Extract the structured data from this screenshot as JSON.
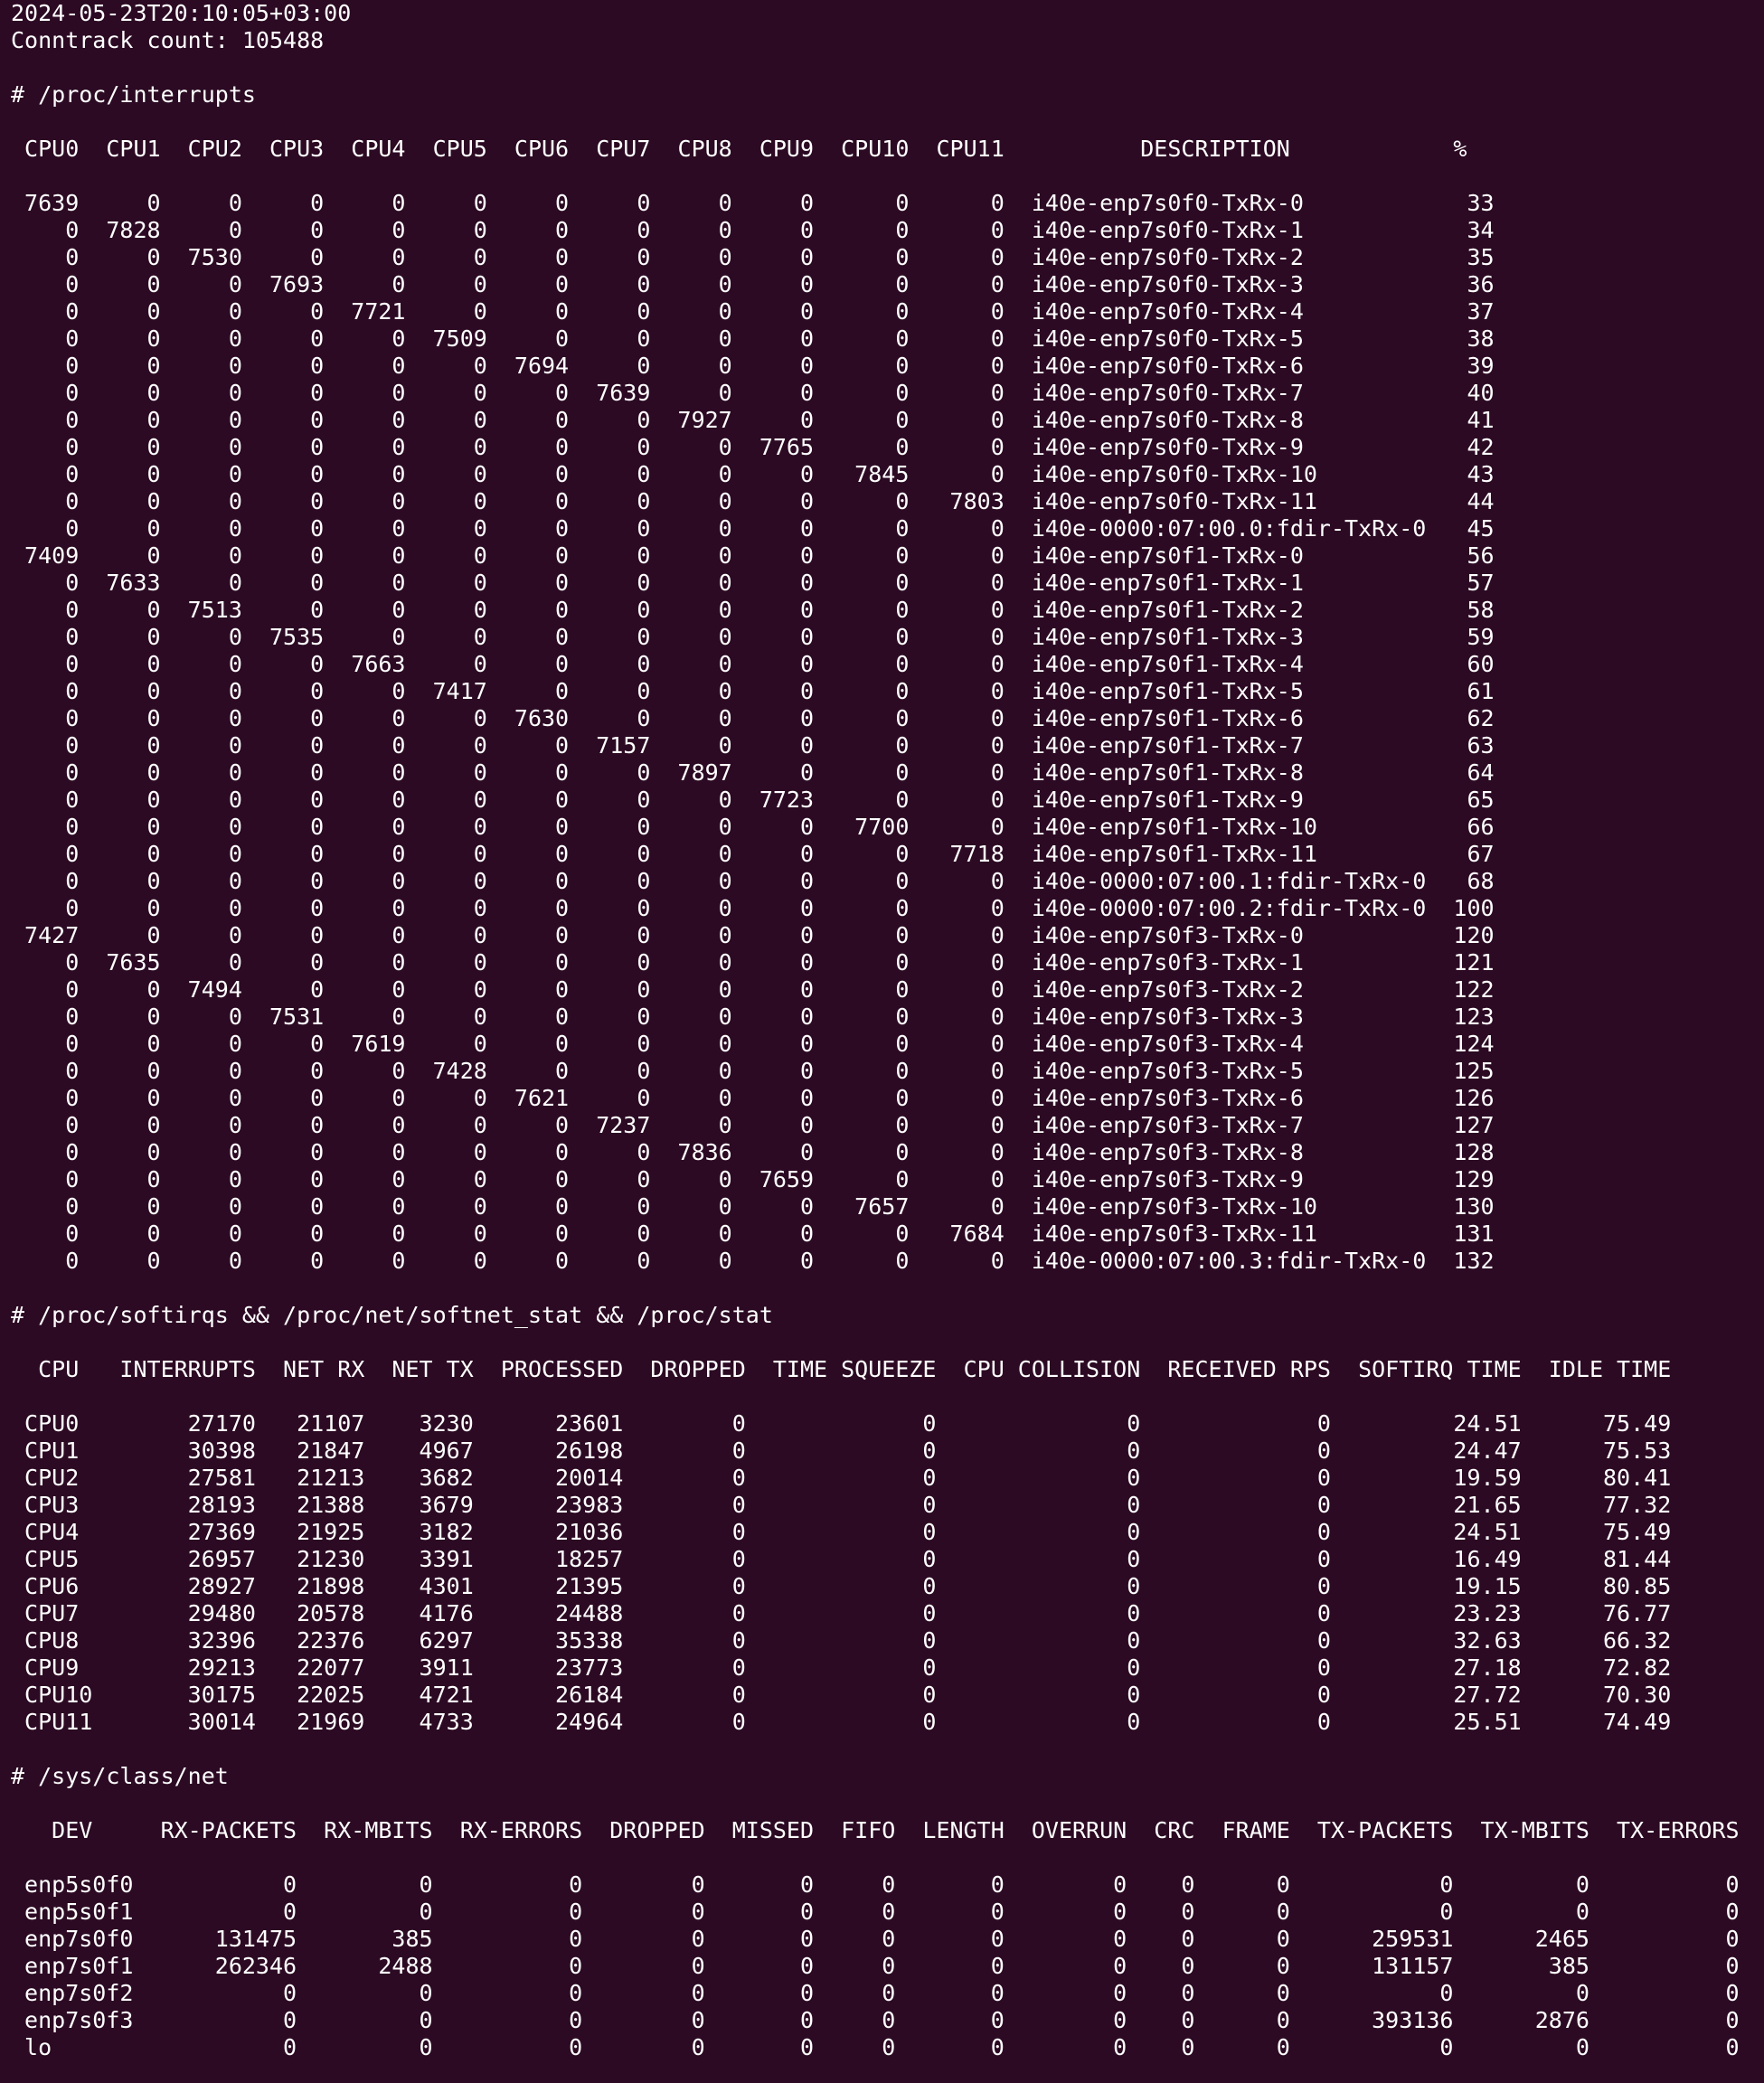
{
  "timestamp": "2024-05-23T20:10:05+03:00",
  "conntrack": "Conntrack count: 105488",
  "interrupts": {
    "heading": "# /proc/interrupts",
    "header": " CPU0  CPU1  CPU2  CPU3  CPU4  CPU5  CPU6  CPU7  CPU8  CPU9  CPU10  CPU11          DESCRIPTION            %",
    "rows": [
      " 7639     0     0     0     0     0     0     0     0     0      0      0  i40e-enp7s0f0-TxRx-0            33",
      "    0  7828     0     0     0     0     0     0     0     0      0      0  i40e-enp7s0f0-TxRx-1            34",
      "    0     0  7530     0     0     0     0     0     0     0      0      0  i40e-enp7s0f0-TxRx-2            35",
      "    0     0     0  7693     0     0     0     0     0     0      0      0  i40e-enp7s0f0-TxRx-3            36",
      "    0     0     0     0  7721     0     0     0     0     0      0      0  i40e-enp7s0f0-TxRx-4            37",
      "    0     0     0     0     0  7509     0     0     0     0      0      0  i40e-enp7s0f0-TxRx-5            38",
      "    0     0     0     0     0     0  7694     0     0     0      0      0  i40e-enp7s0f0-TxRx-6            39",
      "    0     0     0     0     0     0     0  7639     0     0      0      0  i40e-enp7s0f0-TxRx-7            40",
      "    0     0     0     0     0     0     0     0  7927     0      0      0  i40e-enp7s0f0-TxRx-8            41",
      "    0     0     0     0     0     0     0     0     0  7765      0      0  i40e-enp7s0f0-TxRx-9            42",
      "    0     0     0     0     0     0     0     0     0     0   7845      0  i40e-enp7s0f0-TxRx-10           43",
      "    0     0     0     0     0     0     0     0     0     0      0   7803  i40e-enp7s0f0-TxRx-11           44",
      "    0     0     0     0     0     0     0     0     0     0      0      0  i40e-0000:07:00.0:fdir-TxRx-0   45",
      " 7409     0     0     0     0     0     0     0     0     0      0      0  i40e-enp7s0f1-TxRx-0            56",
      "    0  7633     0     0     0     0     0     0     0     0      0      0  i40e-enp7s0f1-TxRx-1            57",
      "    0     0  7513     0     0     0     0     0     0     0      0      0  i40e-enp7s0f1-TxRx-2            58",
      "    0     0     0  7535     0     0     0     0     0     0      0      0  i40e-enp7s0f1-TxRx-3            59",
      "    0     0     0     0  7663     0     0     0     0     0      0      0  i40e-enp7s0f1-TxRx-4            60",
      "    0     0     0     0     0  7417     0     0     0     0      0      0  i40e-enp7s0f1-TxRx-5            61",
      "    0     0     0     0     0     0  7630     0     0     0      0      0  i40e-enp7s0f1-TxRx-6            62",
      "    0     0     0     0     0     0     0  7157     0     0      0      0  i40e-enp7s0f1-TxRx-7            63",
      "    0     0     0     0     0     0     0     0  7897     0      0      0  i40e-enp7s0f1-TxRx-8            64",
      "    0     0     0     0     0     0     0     0     0  7723      0      0  i40e-enp7s0f1-TxRx-9            65",
      "    0     0     0     0     0     0     0     0     0     0   7700      0  i40e-enp7s0f1-TxRx-10           66",
      "    0     0     0     0     0     0     0     0     0     0      0   7718  i40e-enp7s0f1-TxRx-11           67",
      "    0     0     0     0     0     0     0     0     0     0      0      0  i40e-0000:07:00.1:fdir-TxRx-0   68",
      "    0     0     0     0     0     0     0     0     0     0      0      0  i40e-0000:07:00.2:fdir-TxRx-0  100",
      " 7427     0     0     0     0     0     0     0     0     0      0      0  i40e-enp7s0f3-TxRx-0           120",
      "    0  7635     0     0     0     0     0     0     0     0      0      0  i40e-enp7s0f3-TxRx-1           121",
      "    0     0  7494     0     0     0     0     0     0     0      0      0  i40e-enp7s0f3-TxRx-2           122",
      "    0     0     0  7531     0     0     0     0     0     0      0      0  i40e-enp7s0f3-TxRx-3           123",
      "    0     0     0     0  7619     0     0     0     0     0      0      0  i40e-enp7s0f3-TxRx-4           124",
      "    0     0     0     0     0  7428     0     0     0     0      0      0  i40e-enp7s0f3-TxRx-5           125",
      "    0     0     0     0     0     0  7621     0     0     0      0      0  i40e-enp7s0f3-TxRx-6           126",
      "    0     0     0     0     0     0     0  7237     0     0      0      0  i40e-enp7s0f3-TxRx-7           127",
      "    0     0     0     0     0     0     0     0  7836     0      0      0  i40e-enp7s0f3-TxRx-8           128",
      "    0     0     0     0     0     0     0     0     0  7659      0      0  i40e-enp7s0f3-TxRx-9           129",
      "    0     0     0     0     0     0     0     0     0     0   7657      0  i40e-enp7s0f3-TxRx-10          130",
      "    0     0     0     0     0     0     0     0     0     0      0   7684  i40e-enp7s0f3-TxRx-11          131",
      "    0     0     0     0     0     0     0     0     0     0      0      0  i40e-0000:07:00.3:fdir-TxRx-0  132"
    ]
  },
  "softirqs": {
    "heading": "# /proc/softirqs && /proc/net/softnet_stat && /proc/stat",
    "header": "  CPU   INTERRUPTS  NET RX  NET TX  PROCESSED  DROPPED  TIME SQUEEZE  CPU COLLISION  RECEIVED RPS  SOFTIRQ TIME  IDLE TIME",
    "rows": [
      " CPU0        27170   21107    3230      23601        0             0              0             0         24.51      75.49",
      " CPU1        30398   21847    4967      26198        0             0              0             0         24.47      75.53",
      " CPU2        27581   21213    3682      20014        0             0              0             0         19.59      80.41",
      " CPU3        28193   21388    3679      23983        0             0              0             0         21.65      77.32",
      " CPU4        27369   21925    3182      21036        0             0              0             0         24.51      75.49",
      " CPU5        26957   21230    3391      18257        0             0              0             0         16.49      81.44",
      " CPU6        28927   21898    4301      21395        0             0              0             0         19.15      80.85",
      " CPU7        29480   20578    4176      24488        0             0              0             0         23.23      76.77",
      " CPU8        32396   22376    6297      35338        0             0              0             0         32.63      66.32",
      " CPU9        29213   22077    3911      23773        0             0              0             0         27.18      72.82",
      " CPU10       30175   22025    4721      26184        0             0              0             0         27.72      70.30",
      " CPU11       30014   21969    4733      24964        0             0              0             0         25.51      74.49"
    ]
  },
  "net": {
    "heading": "# /sys/class/net",
    "header": "   DEV     RX-PACKETS  RX-MBITS  RX-ERRORS  DROPPED  MISSED  FIFO  LENGTH  OVERRUN  CRC  FRAME  TX-PACKETS  TX-MBITS  TX-ERRORS",
    "rows": [
      " enp5s0f0           0         0          0        0       0     0       0        0    0      0           0         0          0",
      " enp5s0f1           0         0          0        0       0     0       0        0    0      0           0         0          0",
      " enp7s0f0      131475       385          0        0       0     0       0        0    0      0      259531      2465          0",
      " enp7s0f1      262346      2488          0        0       0     0       0        0    0      0      131157       385          0",
      " enp7s0f2           0         0          0        0       0     0       0        0    0      0           0         0          0",
      " enp7s0f3           0         0          0        0       0     0       0        0    0      0      393136      2876          0",
      " lo                 0         0          0        0       0     0       0        0    0      0           0         0          0"
    ]
  }
}
